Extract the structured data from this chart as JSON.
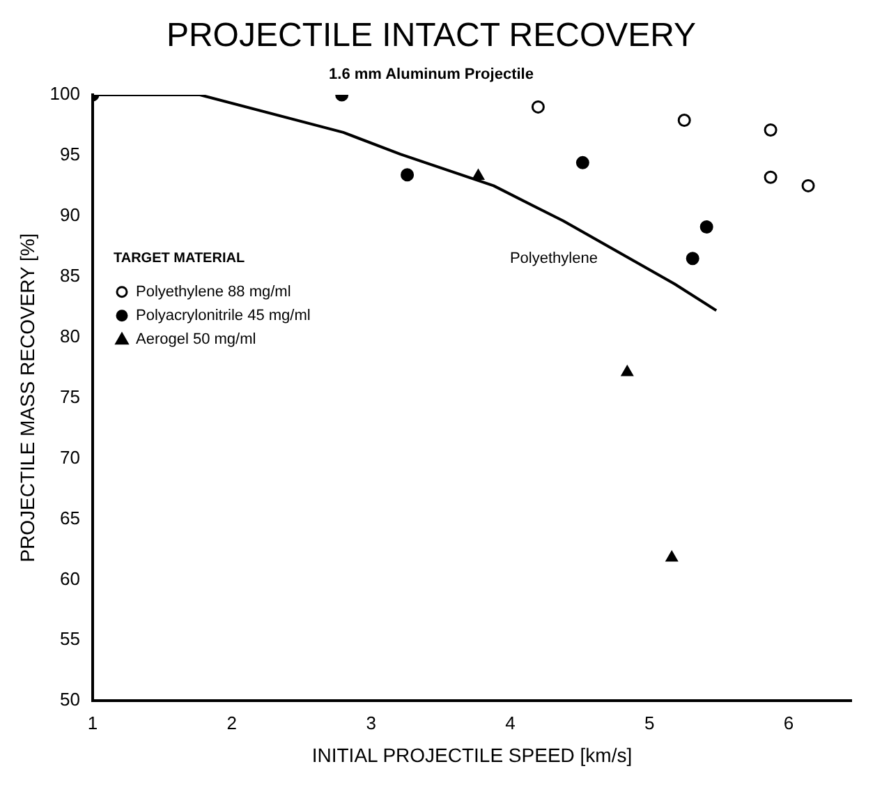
{
  "chart_data": {
    "type": "scatter",
    "title": "PROJECTILE INTACT RECOVERY",
    "subtitle": "1.6 mm Aluminum Projectile",
    "xlabel": "INITIAL PROJECTILE SPEED [km/s]",
    "ylabel": "PROJECTILE MASS RECOVERY [%]",
    "legend_title": "TARGET MATERIAL",
    "legend": "left",
    "series": [
      {
        "name": "Polyethylene 88 mg/ml",
        "color": "#000000",
        "marker": "circle",
        "x": [
          4.2,
          5.25,
          5.87,
          5.87,
          6.14
        ],
        "values": [
          99.0,
          97.9,
          97.1,
          93.2,
          92.5
        ]
      },
      {
        "name": "Polyacrylonitrile 45 mg/ml",
        "color": "#000000",
        "marker": "circle",
        "x": [
          1.0,
          2.79,
          3.26,
          4.52,
          5.41,
          5.31
        ],
        "values": [
          100,
          100,
          93.4,
          94.4,
          89.1,
          86.5
        ]
      },
      {
        "name": "Aerogel 50 mg/ml",
        "color": "#000000",
        "marker": "triangle",
        "x": [
          3.77,
          4.84,
          5.16
        ],
        "values": [
          93.3,
          77.1,
          61.8
        ]
      },
      {
        "type": "line",
        "color": "#000000",
        "marker": "none",
        "x": [
          1.0,
          1.77,
          2.8,
          3.21,
          3.88,
          4.38,
          5.18,
          5.48
        ],
        "values": [
          100,
          100,
          96.9,
          95.1,
          92.5,
          89.6,
          84.4,
          82.2
        ]
      }
    ],
    "annotations": [
      "Polyethylene"
    ],
    "xlim": [
      1,
      6.45
    ],
    "xticks": [
      1,
      2,
      3,
      4,
      5,
      6
    ],
    "ylim": [
      50,
      100
    ],
    "yticks": [
      50,
      55,
      60,
      65,
      70,
      75,
      80,
      85,
      90,
      95,
      100
    ],
    "grid": false
  }
}
